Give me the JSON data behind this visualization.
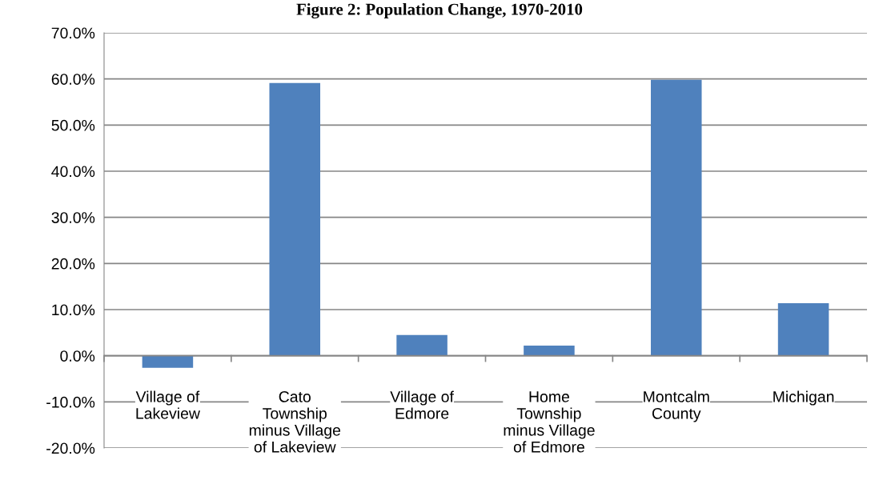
{
  "chart_data": {
    "type": "bar",
    "title": "Figure 2: Population Change, 1970-2010",
    "categories": [
      "Village of\nLakeview",
      "Cato\nTownship\nminus Village\nof Lakeview",
      "Village of\nEdmore",
      "Home\nTownship\nminus Village\nof Edmore",
      "Montcalm\nCounty",
      "Michigan"
    ],
    "values": [
      -2.6,
      59.1,
      4.5,
      2.2,
      59.8,
      11.4
    ],
    "color": "#4f81bd",
    "ylim": [
      -20,
      70
    ],
    "yticks": [
      {
        "value": -20,
        "label": "-20.0%"
      },
      {
        "value": -10,
        "label": "-10.0%"
      },
      {
        "value": 0,
        "label": "0.0%"
      },
      {
        "value": 10,
        "label": "10.0%"
      },
      {
        "value": 20,
        "label": "20.0%"
      },
      {
        "value": 30,
        "label": "30.0%"
      },
      {
        "value": 40,
        "label": "40.0%"
      },
      {
        "value": 50,
        "label": "50.0%"
      },
      {
        "value": 60,
        "label": "60.0%"
      },
      {
        "value": 70,
        "label": "70.0%"
      }
    ],
    "grid": "y"
  }
}
